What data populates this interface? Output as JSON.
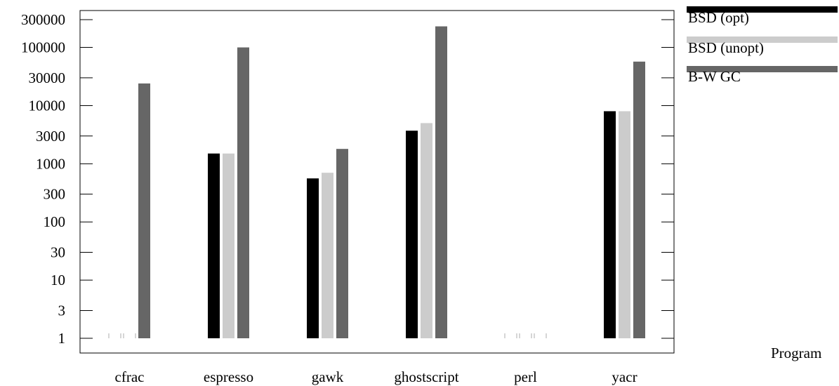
{
  "chart_data": {
    "type": "bar",
    "title": "",
    "xlabel": "Program",
    "ylabel": "",
    "yscale": "log",
    "ylim": [
      1,
      300000
    ],
    "yticks": [
      1,
      3,
      10,
      30,
      100,
      300,
      1000,
      3000,
      10000,
      30000,
      100000,
      300000
    ],
    "ytick_labels": [
      "1",
      "3",
      "10",
      "30",
      "100",
      "300",
      "1000",
      "3000",
      "10000",
      "30000",
      "100000",
      "300000"
    ],
    "categories": [
      "cfrac",
      "espresso",
      "gawk",
      "ghostscript",
      "perl",
      "yacr"
    ],
    "series": [
      {
        "name": "BSD (opt)",
        "color": "#000000",
        "values": [
          1,
          1500,
          560,
          3700,
          1,
          8000
        ]
      },
      {
        "name": "BSD (unopt)",
        "color": "#cccccc",
        "values": [
          1,
          1500,
          700,
          5000,
          1,
          8000
        ]
      },
      {
        "name": "B-W GC",
        "color": "#666666",
        "values": [
          24000,
          100000,
          1800,
          230000,
          1,
          57000
        ]
      }
    ],
    "legend_position": "outside-right-top",
    "grid": false
  }
}
